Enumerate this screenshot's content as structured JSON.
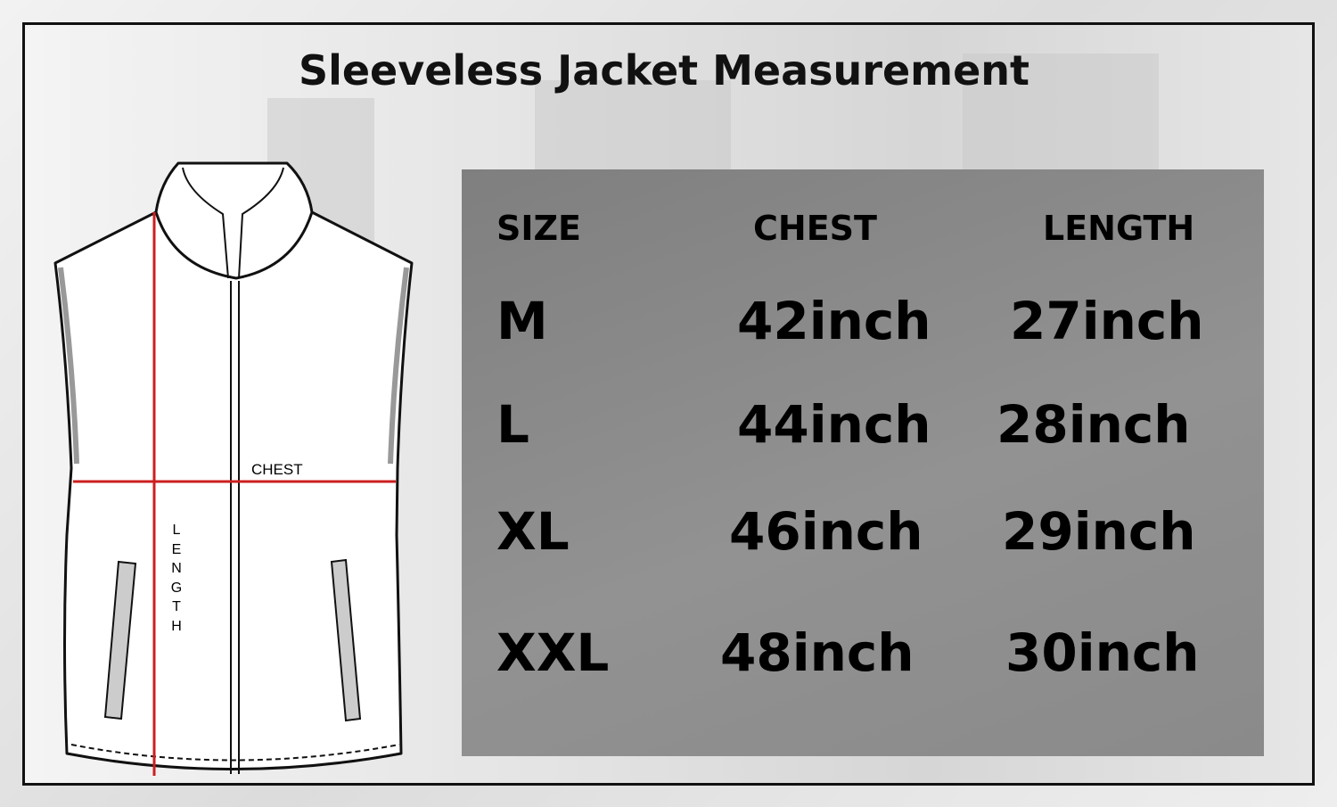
{
  "title": "Sleeveless Jacket Measurement",
  "diagram": {
    "chest_label": "CHEST",
    "length_label": "LENGTH",
    "measure_line_color": "#cc1f1f"
  },
  "table": {
    "headers": [
      "SIZE",
      "CHEST",
      "LENGTH"
    ],
    "rows": [
      {
        "size": "M",
        "chest": "42inch",
        "length": "27inch"
      },
      {
        "size": "L",
        "chest": "44inch",
        "length": "28inch"
      },
      {
        "size": "XL",
        "chest": "46inch",
        "length": "29inch"
      },
      {
        "size": "XXL",
        "chest": "48inch",
        "length": "30inch"
      }
    ]
  }
}
